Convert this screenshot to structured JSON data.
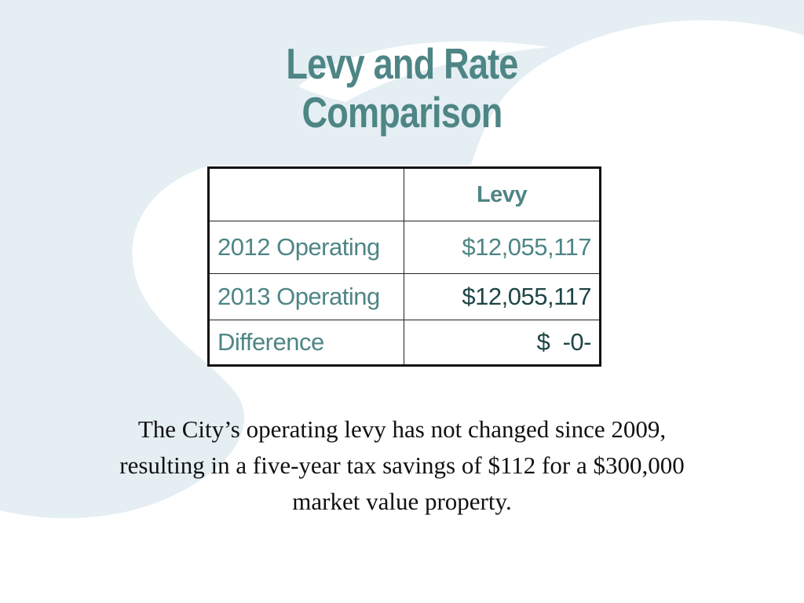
{
  "slide": {
    "title_line1": "Levy and Rate",
    "title_line2": "Comparison",
    "accent_color": "#4e8585",
    "background_color": "#ffffff",
    "swoosh_color": "#e4eef3"
  },
  "table": {
    "header": {
      "label": "",
      "value": "Levy"
    },
    "rows": [
      {
        "label": "2012 Operating",
        "value": "$12,055,117"
      },
      {
        "label": "2013 Operating",
        "value": "$12,055,117"
      },
      {
        "label": "Difference",
        "value": "$  -0-"
      }
    ]
  },
  "note": {
    "line1": "The City’s operating levy has not changed since 2009,",
    "line2": "resulting in a five-year tax savings of $112 for a $300,000",
    "line3": "market value property."
  }
}
